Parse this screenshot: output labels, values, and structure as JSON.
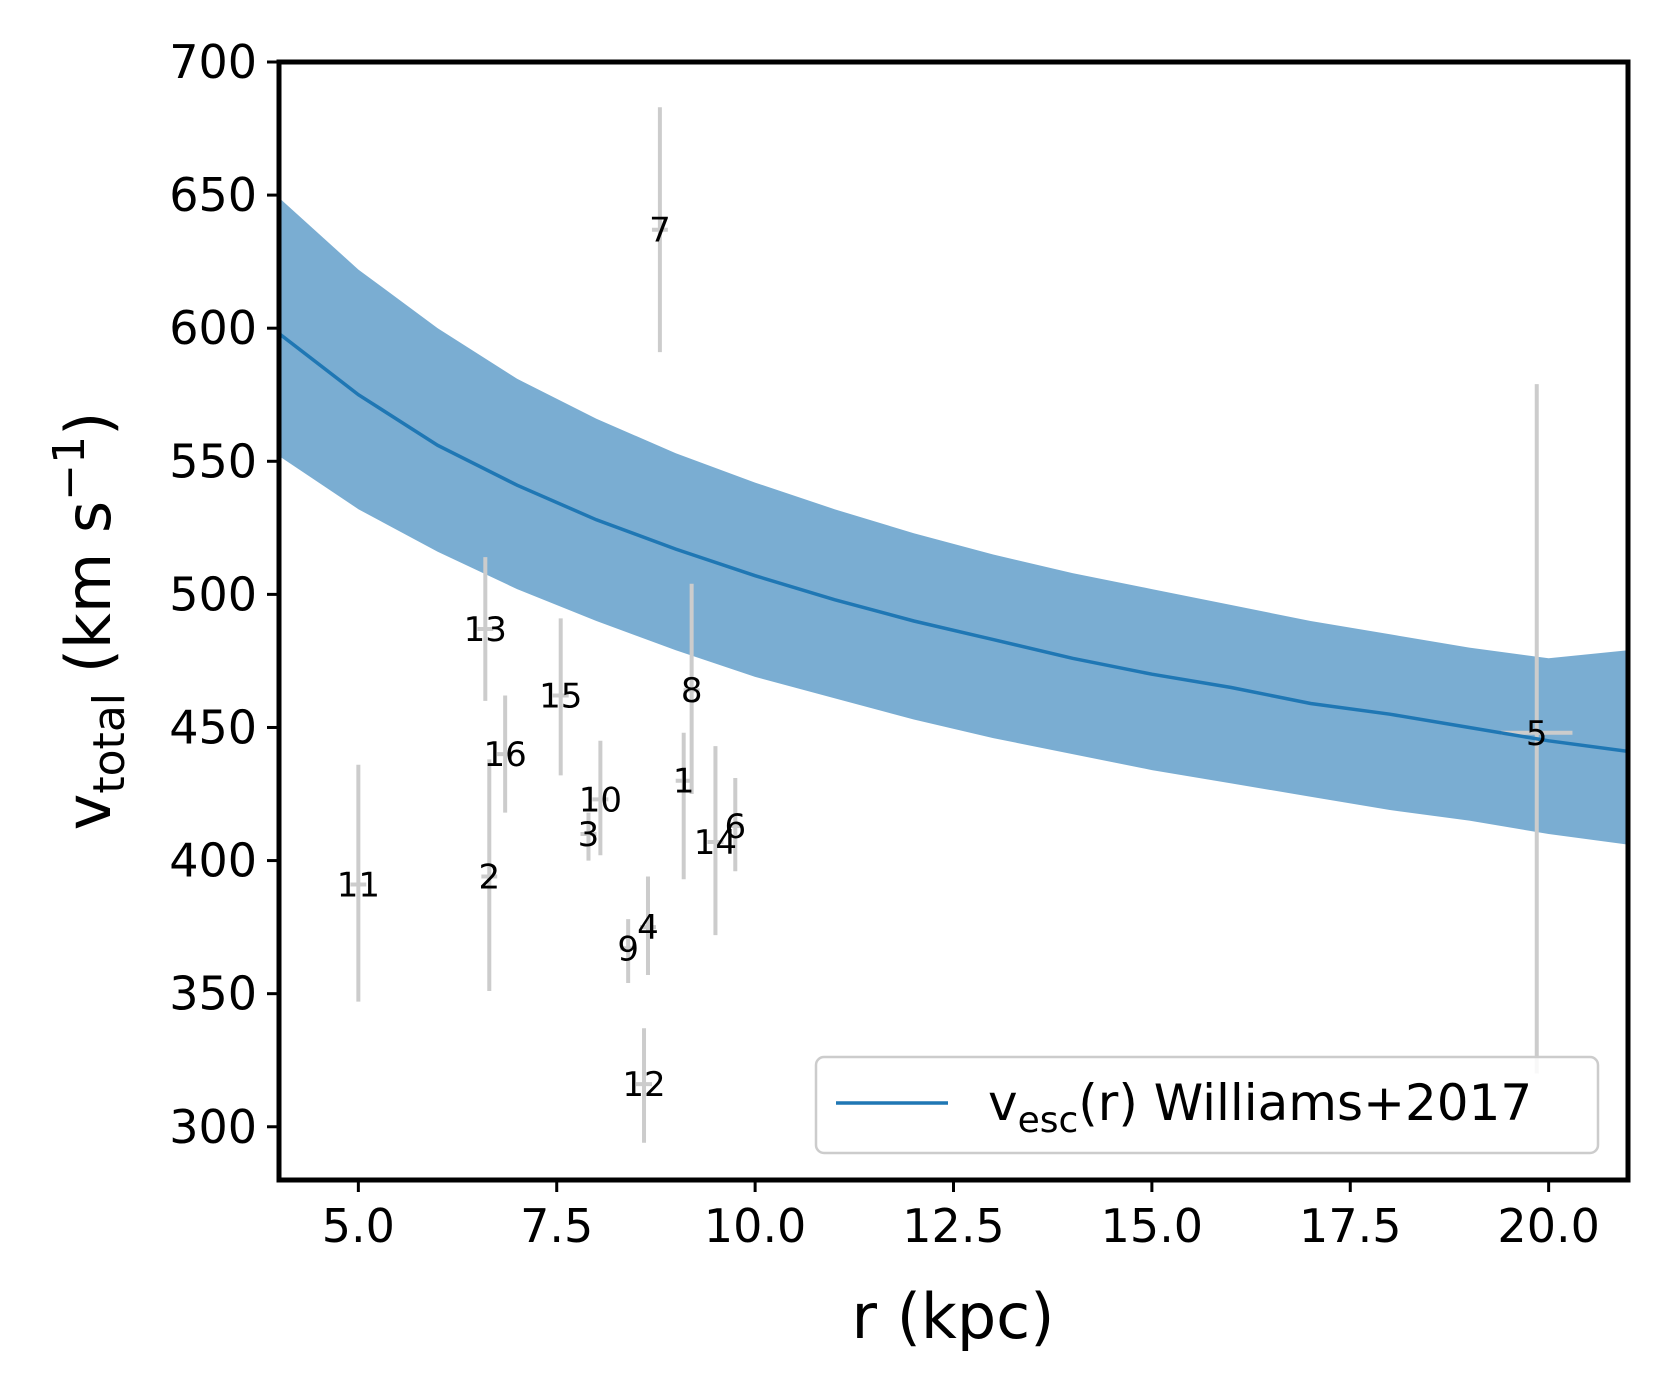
{
  "chart_data": {
    "type": "scatter",
    "xlabel": "r (kpc)",
    "ylabel": {
      "main": "v",
      "sub": "total",
      "unit_prefix": " (km s",
      "exponent": "−1",
      "unit_suffix": ")"
    },
    "xlim": [
      4.0,
      21.0
    ],
    "ylim": [
      280,
      700
    ],
    "xticks": [
      5.0,
      7.5,
      10.0,
      12.5,
      15.0,
      17.5,
      20.0
    ],
    "xtick_labels": [
      "5.0",
      "7.5",
      "10.0",
      "12.5",
      "15.0",
      "17.5",
      "20.0"
    ],
    "yticks": [
      300,
      350,
      400,
      450,
      500,
      550,
      600,
      650,
      700
    ],
    "ytick_labels": [
      "300",
      "350",
      "400",
      "450",
      "500",
      "550",
      "600",
      "650",
      "700"
    ],
    "grid": false,
    "colors": {
      "line": "#1f77b4",
      "band": "#7aadd2",
      "errorbar": "#cccccc",
      "axes": "#000000"
    },
    "legend": {
      "position": "lower-right",
      "main": "v",
      "sub": "esc",
      "rest": "(r) Williams+2017"
    },
    "escape_velocity_curve": {
      "name": "v_esc(r) Williams+2017",
      "r": [
        4.0,
        5.0,
        6.0,
        7.0,
        8.0,
        9.0,
        10.0,
        11.0,
        12.0,
        13.0,
        14.0,
        15.0,
        16.0,
        17.0,
        18.0,
        19.0,
        20.0,
        21.0
      ],
      "v": [
        598,
        575,
        556,
        541,
        528,
        517,
        507,
        498,
        490,
        483,
        476,
        470,
        465,
        459,
        455,
        450,
        445,
        441
      ],
      "lower": [
        552,
        532,
        516,
        502,
        490,
        479,
        469,
        461,
        453,
        446,
        440,
        434,
        429,
        424,
        419,
        415,
        410,
        406
      ],
      "upper": [
        649,
        622,
        600,
        581,
        566,
        553,
        542,
        532,
        523,
        515,
        508,
        502,
        496,
        490,
        485,
        480,
        476,
        479
      ]
    },
    "points": [
      {
        "label": "1",
        "r": 9.1,
        "v": 430,
        "r_err": 0.0,
        "v_lo": 393,
        "v_hi": 448
      },
      {
        "label": "2",
        "r": 6.65,
        "v": 394,
        "r_err": 0.1,
        "v_lo": 351,
        "v_hi": 438
      },
      {
        "label": "3",
        "r": 7.9,
        "v": 410,
        "r_err": 0.0,
        "v_lo": 400,
        "v_hi": 418
      },
      {
        "label": "4",
        "r": 8.65,
        "v": 375,
        "r_err": 0.0,
        "v_lo": 357,
        "v_hi": 394
      },
      {
        "label": "5",
        "r": 19.85,
        "v": 448,
        "r_err": 0.45,
        "v_lo": 320,
        "v_hi": 579
      },
      {
        "label": "6",
        "r": 9.75,
        "v": 413,
        "r_err": 0.0,
        "v_lo": 396,
        "v_hi": 431
      },
      {
        "label": "7",
        "r": 8.8,
        "v": 637,
        "r_err": 0.1,
        "v_lo": 591,
        "v_hi": 683
      },
      {
        "label": "8",
        "r": 9.2,
        "v": 464,
        "r_err": 0.0,
        "v_lo": 425,
        "v_hi": 504
      },
      {
        "label": "9",
        "r": 8.4,
        "v": 367,
        "r_err": 0.0,
        "v_lo": 354,
        "v_hi": 378
      },
      {
        "label": "10",
        "r": 8.05,
        "v": 423,
        "r_err": 0.0,
        "v_lo": 402,
        "v_hi": 445
      },
      {
        "label": "11",
        "r": 5.0,
        "v": 391,
        "r_err": 0.1,
        "v_lo": 347,
        "v_hi": 436
      },
      {
        "label": "12",
        "r": 8.6,
        "v": 316,
        "r_err": 0.0,
        "v_lo": 294,
        "v_hi": 337
      },
      {
        "label": "13",
        "r": 6.6,
        "v": 487,
        "r_err": 0.1,
        "v_lo": 460,
        "v_hi": 514
      },
      {
        "label": "14",
        "r": 9.5,
        "v": 407,
        "r_err": 0.0,
        "v_lo": 372,
        "v_hi": 443
      },
      {
        "label": "15",
        "r": 7.55,
        "v": 462,
        "r_err": 0.0,
        "v_lo": 432,
        "v_hi": 491
      },
      {
        "label": "16",
        "r": 6.85,
        "v": 440,
        "r_err": 0.0,
        "v_lo": 418,
        "v_hi": 462
      }
    ]
  }
}
